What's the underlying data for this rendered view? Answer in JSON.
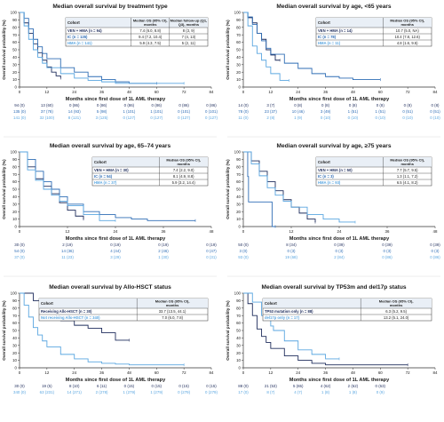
{
  "colors": {
    "dark": "#1f2d5c",
    "mid": "#2f6db5",
    "light": "#5aa6e0",
    "axis": "#333333",
    "box_border": "#333333",
    "header_bg": "#e9eff6"
  },
  "chart_data": [
    {
      "type": "line",
      "title": "Median overall survival by treatment type",
      "xlabel": "Months since first dose of 1L AML therapy",
      "ylabel": "Overall survival probability (%)",
      "xticks": [
        0,
        12,
        24,
        36,
        48,
        60,
        72,
        84
      ],
      "xlim": [
        0,
        84
      ],
      "yticks": [
        0,
        10,
        20,
        30,
        40,
        50,
        60,
        70,
        80,
        90,
        100
      ],
      "ylim": [
        0,
        100
      ],
      "table": {
        "headers": [
          "Cohort",
          "Median OS (95% CI), months",
          "Median follow-up (Q1, Q3), months"
        ],
        "rows": [
          [
            "VEN + HMA (n = 94)",
            "7.4 (6.0, 8.8)",
            "8 (3, 9)"
          ],
          [
            "IC (n = 135)",
            "9.4 (7.2, 10.4)",
            "7 (4, 13)"
          ],
          [
            "HMA (n = 141)",
            "5.9 (4.3, 7.5)",
            "5 (2, 11)"
          ]
        ]
      },
      "series": [
        {
          "name": "VEN + HMA",
          "x": [
            0,
            2,
            4,
            6,
            8,
            10,
            12,
            14,
            16,
            18
          ],
          "y": [
            100,
            86,
            72,
            58,
            46,
            36,
            27,
            20,
            15,
            12
          ]
        },
        {
          "name": "IC",
          "x": [
            0,
            2,
            4,
            6,
            8,
            10,
            12,
            18,
            24,
            30,
            36,
            42,
            48,
            54,
            60
          ],
          "y": [
            100,
            92,
            78,
            64,
            54,
            45,
            38,
            26,
            20,
            14,
            10,
            7,
            5,
            5,
            5
          ]
        },
        {
          "name": "HMA",
          "x": [
            0,
            2,
            4,
            6,
            8,
            10,
            12,
            18,
            24,
            30,
            36,
            42,
            48,
            54,
            60,
            66,
            72
          ],
          "y": [
            100,
            82,
            64,
            50,
            40,
            32,
            26,
            18,
            12,
            9,
            7,
            5,
            5,
            5,
            5,
            5,
            5
          ]
        }
      ],
      "risk": [
        [
          "94 (0)",
          "13 (60)",
          "0 (86)",
          "0 (86)",
          "0 (86)",
          "0 (86)",
          "0 (86)",
          "0 (86)"
        ],
        [
          "135 (0)",
          "37 (78)",
          "14 (93)",
          "5 (98)",
          "1 (101)",
          "1 (101)",
          "0 (101)",
          "0 (101)"
        ],
        [
          "141 (0)",
          "32 (100)",
          "8 (121)",
          "3 (125)",
          "0 (127)",
          "0 (127)",
          "0 (127)",
          "0 (127)"
        ]
      ]
    },
    {
      "type": "line",
      "title": "Median overall survival by age, <65 years",
      "xlabel": "Months since first dose of 1L AML therapy",
      "ylabel": "Overall survival probability (%)",
      "xticks": [
        0,
        12,
        24,
        36,
        48,
        60,
        72,
        84
      ],
      "xlim": [
        0,
        84
      ],
      "yticks": [
        0,
        10,
        20,
        30,
        40,
        50,
        60,
        70,
        80,
        90,
        100
      ],
      "ylim": [
        0,
        100
      ],
      "table": {
        "headers": [
          "Cohort",
          "Median OS (95% CI), months"
        ],
        "rows": [
          [
            "VEN + HMA (n = 14)",
            "10.7 (5.0, NA)"
          ],
          [
            "IC (n = 78)",
            "10.4 (7.8, 12.6)"
          ],
          [
            "HMA (n = 11)",
            "4.8 (1.6, 9.5)"
          ]
        ]
      },
      "series": [
        {
          "name": "VEN + HMA",
          "x": [
            0,
            2,
            4,
            6,
            8,
            10,
            12,
            14,
            16
          ],
          "y": [
            100,
            93,
            86,
            72,
            64,
            50,
            43,
            36,
            36
          ]
        },
        {
          "name": "IC",
          "x": [
            0,
            2,
            4,
            6,
            8,
            10,
            12,
            18,
            24,
            30,
            36,
            42,
            48,
            54,
            60
          ],
          "y": [
            100,
            94,
            84,
            72,
            62,
            52,
            44,
            32,
            25,
            18,
            14,
            12,
            10,
            10,
            10
          ]
        },
        {
          "name": "HMA",
          "x": [
            0,
            2,
            4,
            6,
            8,
            10,
            12,
            16,
            20
          ],
          "y": [
            100,
            82,
            55,
            45,
            36,
            27,
            18,
            9,
            9
          ]
        }
      ],
      "risk": [
        [
          "14 (0)",
          "3 (7)",
          "0 (8)",
          "0 (8)",
          "0 (8)",
          "0 (8)",
          "0 (8)",
          "0 (8)"
        ],
        [
          "78 (0)",
          "23 (37)",
          "10 (46)",
          "3 (49)",
          "1 (51)",
          "1 (51)",
          "0 (51)",
          "0 (51)"
        ],
        [
          "11 (0)",
          "2 (8)",
          "1 (9)",
          "0 (10)",
          "0 (10)",
          "0 (10)",
          "0 (10)",
          "0 (10)"
        ]
      ]
    },
    {
      "type": "line",
      "title": "Median overall survival by age, 65–74 years",
      "xlabel": "Months since first dose of 1L AML therapy",
      "ylabel": "Overall survival probability (%)",
      "xticks": [
        0,
        12,
        24,
        36,
        48
      ],
      "xlim": [
        0,
        48
      ],
      "yticks": [
        0,
        10,
        20,
        30,
        40,
        50,
        60,
        70,
        80,
        90,
        100
      ],
      "ylim": [
        0,
        100
      ],
      "table": {
        "headers": [
          "Cohort",
          "Median OS (95% CI), months"
        ],
        "rows": [
          [
            "VEN + HMA (n = 30)",
            "7.4 (2.2, 9.0)"
          ],
          [
            "IC (n = 54)",
            "8.1 (4.9, 8.8)"
          ],
          [
            "HMA (n = 37)",
            "5.9 (3.2, 14.4)"
          ]
        ]
      },
      "series": [
        {
          "name": "VEN + HMA",
          "x": [
            0,
            2,
            4,
            6,
            8,
            10,
            12,
            14,
            16
          ],
          "y": [
            100,
            80,
            64,
            54,
            44,
            32,
            22,
            14,
            10
          ]
        },
        {
          "name": "IC",
          "x": [
            0,
            2,
            4,
            6,
            8,
            10,
            12,
            16,
            20,
            24,
            28,
            32,
            36,
            40,
            44
          ],
          "y": [
            100,
            90,
            74,
            60,
            50,
            40,
            30,
            20,
            16,
            12,
            10,
            8,
            8,
            8,
            8
          ]
        },
        {
          "name": "HMA",
          "x": [
            0,
            2,
            4,
            6,
            8,
            10,
            12,
            16,
            20,
            24
          ],
          "y": [
            100,
            76,
            62,
            50,
            42,
            34,
            28,
            16,
            8,
            8
          ]
        }
      ],
      "risk": [
        [
          "30 (0)",
          "2 (19)",
          "0 (19)",
          "0 (19)",
          "0 (19)"
        ],
        [
          "54 (0)",
          "14 (36)",
          "4 (44)",
          "2 (46)",
          "0 (47)"
        ],
        [
          "37 (0)",
          "11 (23)",
          "3 (29)",
          "1 (30)",
          "0 (31)"
        ]
      ]
    },
    {
      "type": "line",
      "title": "Median overall survival by age, ≥75 years",
      "xlabel": "Months since first dose of 1L AML therapy",
      "ylabel": "Overall survival probability (%)",
      "xticks": [
        0,
        12,
        24,
        36,
        48
      ],
      "xlim": [
        0,
        48
      ],
      "yticks": [
        0,
        10,
        20,
        30,
        40,
        50,
        60,
        70,
        80,
        90,
        100
      ],
      "ylim": [
        0,
        100
      ],
      "table": {
        "headers": [
          "Cohort",
          "Median OS (95% CI), months"
        ],
        "rows": [
          [
            "VEN + HMA (n = 50)",
            "7.7 (5.7, 9.5)"
          ],
          [
            "IC (n = 3)",
            "1.3 (1.1, 7.2)"
          ],
          [
            "HMA (n = 93)",
            "6.5 (4.1, 8.2)"
          ]
        ]
      },
      "series": [
        {
          "name": "VEN + HMA",
          "x": [
            0,
            2,
            4,
            6,
            8,
            10,
            12,
            14,
            16,
            18
          ],
          "y": [
            100,
            88,
            74,
            60,
            48,
            36,
            26,
            18,
            10,
            6
          ]
        },
        {
          "name": "IC",
          "x": [
            0,
            1.1,
            1.3,
            7.2,
            7.2,
            8
          ],
          "y": [
            100,
            67,
            33,
            33,
            0,
            0
          ]
        },
        {
          "name": "HMA",
          "x": [
            0,
            2,
            4,
            6,
            8,
            10,
            12,
            16,
            20,
            24,
            28
          ],
          "y": [
            100,
            84,
            68,
            52,
            42,
            34,
            26,
            16,
            10,
            6,
            6
          ]
        }
      ],
      "risk": [
        [
          "50 (0)",
          "8 (34)",
          "0 (39)",
          "0 (39)",
          "0 (39)"
        ],
        [
          "3 (0)",
          "0 (3)",
          "0 (3)",
          "0 (3)",
          "0 (3)"
        ],
        [
          "93 (0)",
          "19 (68)",
          "2 (84)",
          "0 (86)",
          "0 (86)"
        ]
      ]
    },
    {
      "type": "line",
      "title": "Median overall survival by Allo-HSCT status",
      "xlabel": "Months since first dose of 1L AML therapy",
      "ylabel": "Overall survival probability (%)",
      "xticks": [
        0,
        12,
        24,
        36,
        48,
        60,
        72,
        84
      ],
      "xlim": [
        0,
        84
      ],
      "yticks": [
        0,
        10,
        20,
        30,
        40,
        50,
        60,
        70,
        80,
        90,
        100
      ],
      "ylim": [
        0,
        100
      ],
      "table": {
        "headers": [
          "Cohort",
          "Median OS (95% CI), months"
        ],
        "rows": [
          [
            "Receiving Allo-HSCT (n = 30)",
            "33.7 (13.5, 44.1)"
          ],
          [
            "Not receiving Allo-HSCT (n = 340)",
            "7.0 (6.0, 7.8)"
          ]
        ]
      },
      "series": [
        {
          "name": "Receiving Allo-HSCT",
          "x": [
            0,
            6,
            12,
            18,
            24,
            30,
            36,
            42,
            48
          ],
          "y": [
            100,
            90,
            73,
            63,
            57,
            53,
            47,
            37,
            37
          ]
        },
        {
          "name": "Not receiving Allo-HSCT",
          "x": [
            0,
            2,
            4,
            6,
            8,
            10,
            12,
            18,
            24,
            30,
            36,
            42,
            48,
            54,
            60,
            66,
            72
          ],
          "y": [
            100,
            84,
            68,
            54,
            44,
            36,
            28,
            18,
            12,
            8,
            6,
            5,
            4,
            4,
            4,
            4,
            4
          ]
        }
      ],
      "risk": [
        [
          "30 (0)",
          "19 (5)",
          "8 (10)",
          "6 (11)",
          "0 (15)",
          "0 (15)",
          "0 (15)",
          "0 (15)"
        ],
        [
          "340 (0)",
          "63 (231)",
          "14 (271)",
          "2 (278)",
          "1 (279)",
          "1 (279)",
          "0 (279)",
          "0 (279)"
        ]
      ]
    },
    {
      "type": "line",
      "title": "Median overall survival by TP53m and del17p status",
      "xlabel": "Months since first dose of 1L AML therapy",
      "ylabel": "Overall survival probability (%)",
      "xticks": [
        0,
        12,
        24,
        36,
        48,
        60,
        72,
        84
      ],
      "xlim": [
        0,
        84
      ],
      "yticks": [
        0,
        10,
        20,
        30,
        40,
        50,
        60,
        70,
        80,
        90,
        100
      ],
      "ylim": [
        0,
        100
      ],
      "table": {
        "headers": [
          "Cohort",
          "Median OS (95% CI), months"
        ],
        "rows": [
          [
            "TP53 mutation only (n = 88)",
            "6.3 (5.2, 9.5)"
          ],
          [
            "del17p only (n = 17)",
            "13.2 (5.1, 24.0)"
          ]
        ]
      },
      "series": [
        {
          "name": "TP53 mutation only",
          "x": [
            0,
            2,
            4,
            6,
            8,
            10,
            12,
            18,
            24,
            30,
            36,
            48,
            60,
            72
          ],
          "y": [
            100,
            86,
            70,
            52,
            42,
            34,
            26,
            16,
            10,
            6,
            4,
            4,
            4,
            4
          ]
        },
        {
          "name": "del17p only",
          "x": [
            0,
            4,
            8,
            12,
            13.2,
            18,
            24,
            30,
            36,
            42
          ],
          "y": [
            100,
            88,
            70,
            56,
            50,
            36,
            24,
            18,
            12,
            12
          ]
        }
      ],
      "risk": [
        [
          "88 (0)",
          "21 (53)",
          "5 (65)",
          "4 (62)",
          "2 (62)",
          "0 (63)",
          "",
          ""
        ],
        [
          "17 (0)",
          "8 (7)",
          "4 (7)",
          "1 (8)",
          "1 (8)",
          "0 (9)",
          "",
          ""
        ]
      ]
    }
  ]
}
